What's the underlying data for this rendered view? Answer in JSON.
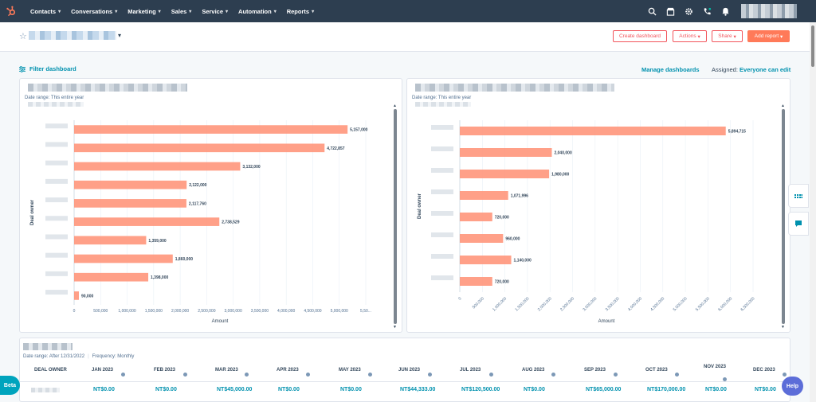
{
  "nav": {
    "items": [
      {
        "label": "Contacts"
      },
      {
        "label": "Conversations"
      },
      {
        "label": "Marketing"
      },
      {
        "label": "Sales"
      },
      {
        "label": "Service"
      },
      {
        "label": "Automation"
      },
      {
        "label": "Reports"
      }
    ],
    "icons": [
      "search-icon",
      "marketplace-icon",
      "settings-icon",
      "calling-icon",
      "notifications-icon"
    ]
  },
  "header": {
    "create_dashboard": "Create dashboard",
    "actions": "Actions",
    "share": "Share",
    "add_report": "Add report"
  },
  "filters": {
    "filter_dashboard": "Filter dashboard",
    "manage_dashboards": "Manage dashboards",
    "assigned_label": "Assigned:",
    "assigned_value": "Everyone can edit"
  },
  "colors": {
    "nav_bg": "#2d3e50",
    "accent": "#ff7a59",
    "link": "#0091ae",
    "bar": "#ff8f73"
  },
  "chart_left": {
    "date_range": "Date range: This entire year"
  },
  "chart_right": {
    "date_range": "Date range: This entire year"
  },
  "chart_data": [
    {
      "type": "bar",
      "orientation": "horizontal",
      "ylabel": "Deal owner",
      "xlabel": "Amount",
      "xlim": [
        0,
        5500000
      ],
      "xticks": [
        "0",
        "500,000",
        "1,000,000",
        "1,500,000",
        "2,000,000",
        "2,500,000",
        "3,000,000",
        "3,500,000",
        "4,000,000",
        "4,500,000",
        "5,000,000",
        "5,50..."
      ],
      "values": [
        5157000,
        4722857,
        3132000,
        2122000,
        2117760,
        2738529,
        1359000,
        1860000,
        1398000,
        90000
      ],
      "labels": [
        "5,157,000",
        "4,722,857",
        "3,132,000",
        "2,122,000",
        "2,117,760",
        "2,738,529",
        "1,359,000",
        "1,860,000",
        "1,398,000",
        "90,000"
      ],
      "grid": true
    },
    {
      "type": "bar",
      "orientation": "horizontal",
      "ylabel": "Deal owner",
      "xlabel": "Amount",
      "xlim": [
        0,
        6500000
      ],
      "xticks": [
        "0",
        "500,000",
        "1,000,000",
        "1,500,000",
        "2,000,000",
        "2,500,000",
        "3,000,000",
        "3,500,000",
        "4,000,000",
        "4,500,000",
        "5,000,000",
        "5,500,000",
        "6,000,000",
        "6,500,000"
      ],
      "values": [
        5894715,
        2040000,
        1980000,
        1071996,
        720000,
        960000,
        1140000,
        720000
      ],
      "labels": [
        "5,894,715",
        "2,040,000",
        "1,980,000",
        "1,071,996",
        "720,000",
        "960,000",
        "1,140,000",
        "720,000"
      ],
      "grid": true
    }
  ],
  "table": {
    "date_range": "Date range: After 12/31/2022",
    "frequency": "Frequency: Monthly",
    "owner_header": "DEAL OWNER",
    "columns": [
      "JAN 2023",
      "FEB 2023",
      "MAR 2023",
      "APR 2023",
      "MAY 2023",
      "JUN 2023",
      "JUL 2023",
      "AUG 2023",
      "SEP 2023",
      "OCT 2023",
      "NOV 2023",
      "DEC 2023"
    ],
    "row_values": [
      "NT$0.00",
      "NT$0.00",
      "NT$45,000.00",
      "NT$0.00",
      "NT$0.00",
      "NT$44,333.00",
      "NT$120,500.00",
      "NT$0.00",
      "NT$65,000.00",
      "NT$170,000.00",
      "NT$0.00",
      "NT$0.00"
    ]
  },
  "widgets": {
    "beta": "Beta",
    "help": "Help"
  }
}
